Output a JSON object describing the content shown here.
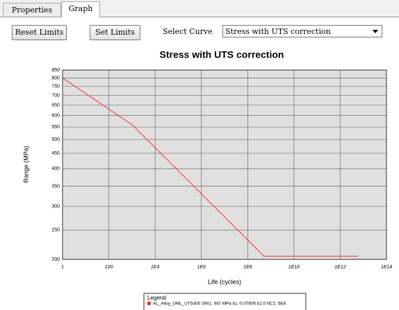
{
  "tabs": [
    "Properties",
    "Graph"
  ],
  "toolbar": {
    "reset_button": "Reset Limits",
    "set_button": "Set Limits",
    "select_label": "Select Curve",
    "select_value": "Stress with UTS correction"
  },
  "chart_data": {
    "type": "line",
    "title": "Stress with UTS correction",
    "x_label": "Life (cycles)",
    "y_label": "Range (MPa)",
    "x_log": true,
    "y_log": true,
    "grid": true,
    "xlim": [
      1,
      100000000000000
    ],
    "xticks": [
      1,
      100,
      {
        "value": 10000,
        "label": "1E4"
      },
      {
        "value": 1000000,
        "label": "1E6"
      },
      {
        "value": 100000000,
        "label": "1E8"
      },
      {
        "value": 10000000000,
        "label": "1E10"
      },
      {
        "value": 1000000000000,
        "label": "1E12"
      },
      {
        "value": 100000000000000,
        "label": "1E14"
      }
    ],
    "ylim": [
      200,
      850
    ],
    "yticks": [
      200,
      250,
      300,
      350,
      400,
      450,
      500,
      550,
      600,
      650,
      700,
      750,
      800,
      850
    ],
    "legend_title": "Legend",
    "series": [
      {
        "name": "AL_Alloy_UML_UTS400 SRI1: 947 MPa b1:-0.07606 b2:0 NC1: 5E8",
        "color": "#ff2a2a",
        "x": [
          1,
          1000,
          500000000,
          6000000000000
        ],
        "values": [
          800,
          560,
          205,
          205
        ]
      }
    ]
  }
}
